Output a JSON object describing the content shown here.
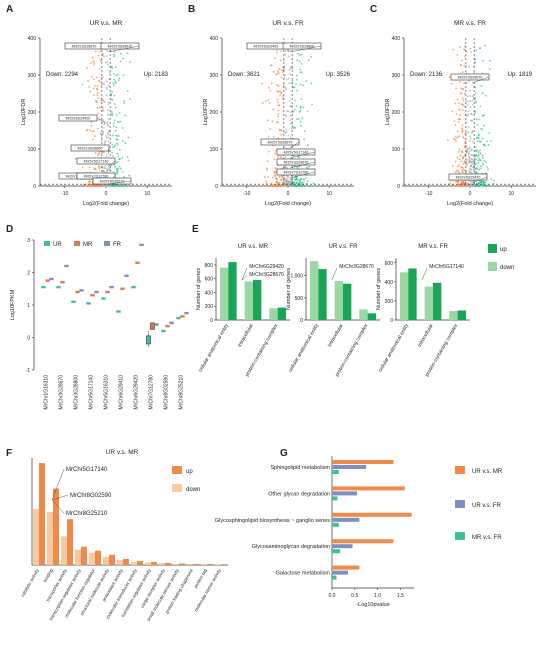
{
  "colors": {
    "orange": "#f08a4b",
    "orange_light": "#f7c9a3",
    "teal": "#3fbf97",
    "teal_light": "#9fdfc6",
    "green": "#19a458",
    "green_light": "#9bd7a3",
    "blue": "#7f8fbf",
    "gray": "#aaaaaa"
  },
  "chart_data": [
    {
      "panel": "A",
      "type": "scatter",
      "title": "UR v.s. MR",
      "xlabel": "Log2(Fold change)",
      "ylabel": "Log10FDR",
      "xticks": [
        "-10",
        "0",
        "10"
      ],
      "yticks": [
        "0",
        "100",
        "200",
        "300",
        "400"
      ],
      "xlim": [
        -16,
        16
      ],
      "ylim": [
        0,
        400
      ],
      "down_label": "Down: 2294",
      "up_label": "Up: 2183",
      "gene_labels": [
        "MrChr3G28670",
        "MrChr3G28670",
        "MrChr6G29420",
        "MrChr3G28800",
        "MrChr5G17140",
        "MrChr2G16310",
        "MrChr7G12780",
        "MrChr8G25210"
      ]
    },
    {
      "panel": "B",
      "type": "scatter",
      "title": "UR v.s. FR",
      "xlabel": "Log2(Fold change)",
      "ylabel": "Log10FDR",
      "xticks": [
        "-10",
        "0",
        "10"
      ],
      "yticks": [
        "0",
        "100",
        "200",
        "300",
        "400"
      ],
      "xlim": [
        -16,
        16
      ],
      "ylim": [
        0,
        400
      ],
      "down_label": "Down: 3621",
      "up_label": "Up: 3526",
      "gene_labels": [
        "MrChr6G29420",
        "MrChr3G28800",
        "MrChr3G28670",
        "MrChr5G17140",
        "MrChr3G28670",
        "MrChr7G12780"
      ]
    },
    {
      "panel": "C",
      "type": "scatter",
      "title": "MR v.s. FR",
      "xlabel": "Log2(Fold change)",
      "ylabel": "Log10FDR",
      "xticks": [
        "-10",
        "0",
        "10"
      ],
      "yticks": [
        "0",
        "100",
        "200",
        "300",
        "400"
      ],
      "xlim": [
        -16,
        16
      ],
      "ylim": [
        0,
        400
      ],
      "down_label": "Down: 2136",
      "up_label": "Up: 1819",
      "gene_labels": [
        "MrChr3G28670",
        "MrChr6G29420"
      ]
    },
    {
      "panel": "D",
      "type": "box",
      "ylabel": "Log10FPKM",
      "yticks": [
        "-1",
        "0",
        "1",
        "2",
        "3"
      ],
      "ylim": [
        -1,
        3
      ],
      "legend": [
        "UR",
        "MR",
        "FR"
      ],
      "categories": [
        "MrChr1G16310",
        "MrChr3G28670",
        "MrChr3G28800",
        "MrChr5G17140",
        "MrChr5G16310",
        "MrChr6G29410",
        "MrChr6G29420",
        "MrChr7G12780",
        "MrChr8G02590",
        "MrChr8G25210"
      ],
      "series": [
        {
          "name": "UR",
          "values": [
            1.55,
            1.55,
            1.1,
            1.05,
            1.2,
            0.8,
            1.55,
            -0.1,
            0.2,
            0.6
          ]
        },
        {
          "name": "MR",
          "values": [
            1.75,
            1.7,
            1.4,
            1.3,
            1.4,
            1.5,
            2.3,
            0.35,
            0.35,
            0.65
          ]
        },
        {
          "name": "FR",
          "values": [
            1.8,
            2.2,
            1.45,
            1.4,
            1.55,
            1.9,
            2.85,
            0.4,
            0.45,
            0.75
          ]
        }
      ]
    },
    {
      "panel": "E",
      "type": "bar",
      "ylabel": "Number of genes",
      "categories": [
        "cellular anatomical entity",
        "intracellular",
        "protein-containing complex"
      ],
      "legend": [
        "up",
        "down"
      ],
      "subplots": [
        {
          "title": "UR v.s. MR",
          "yticks": [
            "0",
            "200",
            "400",
            "600",
            "800"
          ],
          "ylim": [
            0,
            900
          ],
          "series": [
            {
              "name": "up",
              "values": [
                840,
                580,
                180
              ]
            },
            {
              "name": "down",
              "values": [
                760,
                560,
                170
              ]
            }
          ],
          "annotations": [
            "MrChr6G29420",
            "MrChr3G28670"
          ]
        },
        {
          "title": "UR v.s. FR",
          "yticks": [
            "0",
            "500",
            "1,000"
          ],
          "ylim": [
            0,
            1400
          ],
          "series": [
            {
              "name": "up",
              "values": [
                1150,
                820,
                150
              ]
            },
            {
              "name": "down",
              "values": [
                1330,
                880,
                240
              ]
            }
          ],
          "annotations": [
            "MrChr3G28670"
          ]
        },
        {
          "title": "MR v.s. FR",
          "yticks": [
            "0",
            "200",
            "400",
            "600"
          ],
          "ylim": [
            0,
            650
          ],
          "series": [
            {
              "name": "up",
              "values": [
                540,
                390,
                100
              ]
            },
            {
              "name": "down",
              "values": [
                500,
                350,
                95
              ]
            }
          ],
          "annotations": [
            "MrChr5G17140"
          ]
        }
      ]
    },
    {
      "panel": "F",
      "type": "bar",
      "title": "UR v.s. MR",
      "legend": [
        "up",
        "down"
      ],
      "categories": [
        "catalytic activity",
        "binding",
        "transporter activity",
        "transcription regulator activity",
        "molecular function regulator",
        "structural molecule activity",
        "antioxidant activity",
        "molecular transducer activity",
        "translation regulator activity",
        "cargo receptor activity",
        "small molecule sensor activity",
        "protein folding chaperone",
        "protein tag",
        "molecular carrier activity"
      ],
      "series": [
        {
          "name": "up",
          "values": [
            100,
            75,
            45,
            18,
            14,
            10,
            6,
            4,
            3,
            2,
            1.5,
            1,
            1,
            0.8
          ]
        },
        {
          "name": "down",
          "values": [
            55,
            52,
            28,
            15,
            12,
            8,
            5,
            3,
            2.5,
            2,
            1,
            1,
            0.8,
            0.5
          ]
        }
      ],
      "annotations": [
        "MrChr5G17140",
        "MrChr8G02590",
        "MrChr8G25210"
      ]
    },
    {
      "panel": "G",
      "type": "bar",
      "xlabel": "-Log10pvalue",
      "xticks": [
        "0.0",
        "0.5",
        "1.0",
        "1.5"
      ],
      "xlim": [
        0,
        1.8
      ],
      "categories": [
        "Sphingolipid metabolism",
        "Other glycan degradation",
        "Glycosphingolipid biosynthesis ~ ganglio series",
        "Glycosaminoglycan degradation",
        "Galactose metabolism"
      ],
      "series": [
        {
          "name": "UR v.s. MR",
          "values": [
            1.35,
            1.6,
            1.75,
            1.35,
            0.6
          ]
        },
        {
          "name": "UR v.s. FR",
          "values": [
            0.75,
            0.55,
            0.6,
            0.45,
            0.35
          ]
        },
        {
          "name": "MR v.s. FR",
          "values": [
            0.15,
            0.12,
            0.15,
            0.18,
            0.1
          ]
        }
      ]
    }
  ]
}
